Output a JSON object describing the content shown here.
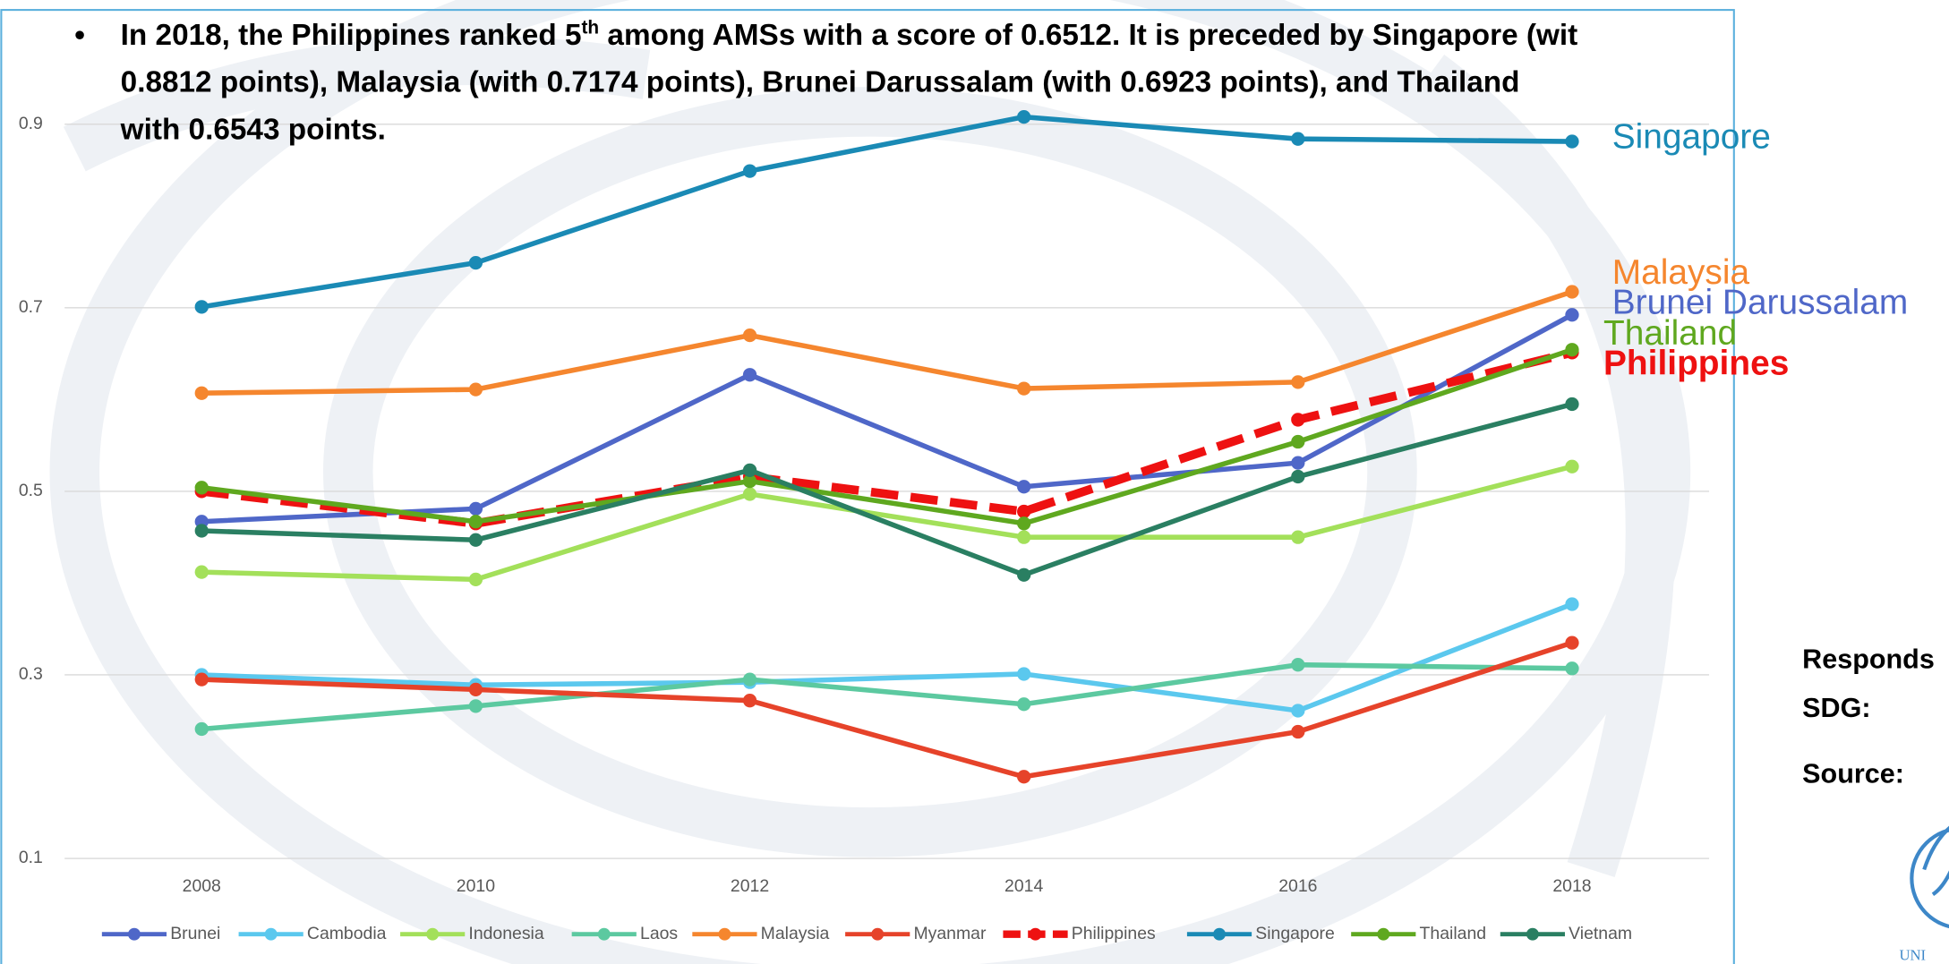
{
  "annotation": {
    "line1_before": "In 2018, the Philippines ranked 5",
    "line1_sup": "th",
    "line1_after": " among AMSs with a score of 0.6512. It is preceded by Singapore (wit",
    "line2": "0.8812 points), Malaysia (with 0.7174 points), Brunei Darussalam (with 0.6923 points), and Thailand",
    "line3": "with 0.6543 points."
  },
  "side_panel": {
    "responds": "Responds",
    "sdg": "SDG:",
    "source": "Source:",
    "logo_text": "UNI"
  },
  "chart_data": {
    "type": "line",
    "x": [
      2008,
      2010,
      2012,
      2014,
      2016,
      2018
    ],
    "xlim": [
      2007,
      2019
    ],
    "xticks": [
      2008,
      2010,
      2012,
      2014,
      2016,
      2018
    ],
    "ylim": [
      0.1,
      0.9
    ],
    "yticks": [
      0.1,
      0.3,
      0.5,
      0.7,
      0.9
    ],
    "grid": true,
    "legend": "bottom",
    "series": [
      {
        "name": "Brunei",
        "color": "#4f67c8",
        "values": [
          0.467,
          0.481,
          0.627,
          0.505,
          0.531,
          0.6923
        ],
        "end_label": "Brunei Darussalam"
      },
      {
        "name": "Cambodia",
        "color": "#5bc8ee",
        "values": [
          0.3,
          0.289,
          0.292,
          0.301,
          0.261,
          0.377
        ]
      },
      {
        "name": "Indonesia",
        "color": "#a3e05a",
        "values": [
          0.412,
          0.404,
          0.497,
          0.45,
          0.45,
          0.527
        ]
      },
      {
        "name": "Laos",
        "color": "#5cc9a0",
        "values": [
          0.241,
          0.266,
          0.295,
          0.268,
          0.311,
          0.307
        ]
      },
      {
        "name": "Malaysia",
        "color": "#f5862e",
        "values": [
          0.607,
          0.611,
          0.67,
          0.612,
          0.619,
          0.7174
        ],
        "end_label": "Malaysia"
      },
      {
        "name": "Myanmar",
        "color": "#e6432a",
        "values": [
          0.295,
          0.284,
          0.272,
          0.189,
          0.238,
          0.335
        ]
      },
      {
        "name": "Philippines",
        "color": "#ee1111",
        "dashed": true,
        "values": [
          0.5,
          0.465,
          0.516,
          0.478,
          0.578,
          0.6512
        ],
        "end_label": "Philippines"
      },
      {
        "name": "Singapore",
        "color": "#1a8ab5",
        "values": [
          0.701,
          0.749,
          0.849,
          0.908,
          0.884,
          0.8812
        ],
        "end_label": "Singapore"
      },
      {
        "name": "Thailand",
        "color": "#5fa81f",
        "values": [
          0.504,
          0.467,
          0.511,
          0.465,
          0.554,
          0.6543
        ],
        "end_label": "Thailand"
      },
      {
        "name": "Vietnam",
        "color": "#2a7f62",
        "values": [
          0.457,
          0.447,
          0.523,
          0.409,
          0.516,
          0.595
        ]
      }
    ]
  }
}
